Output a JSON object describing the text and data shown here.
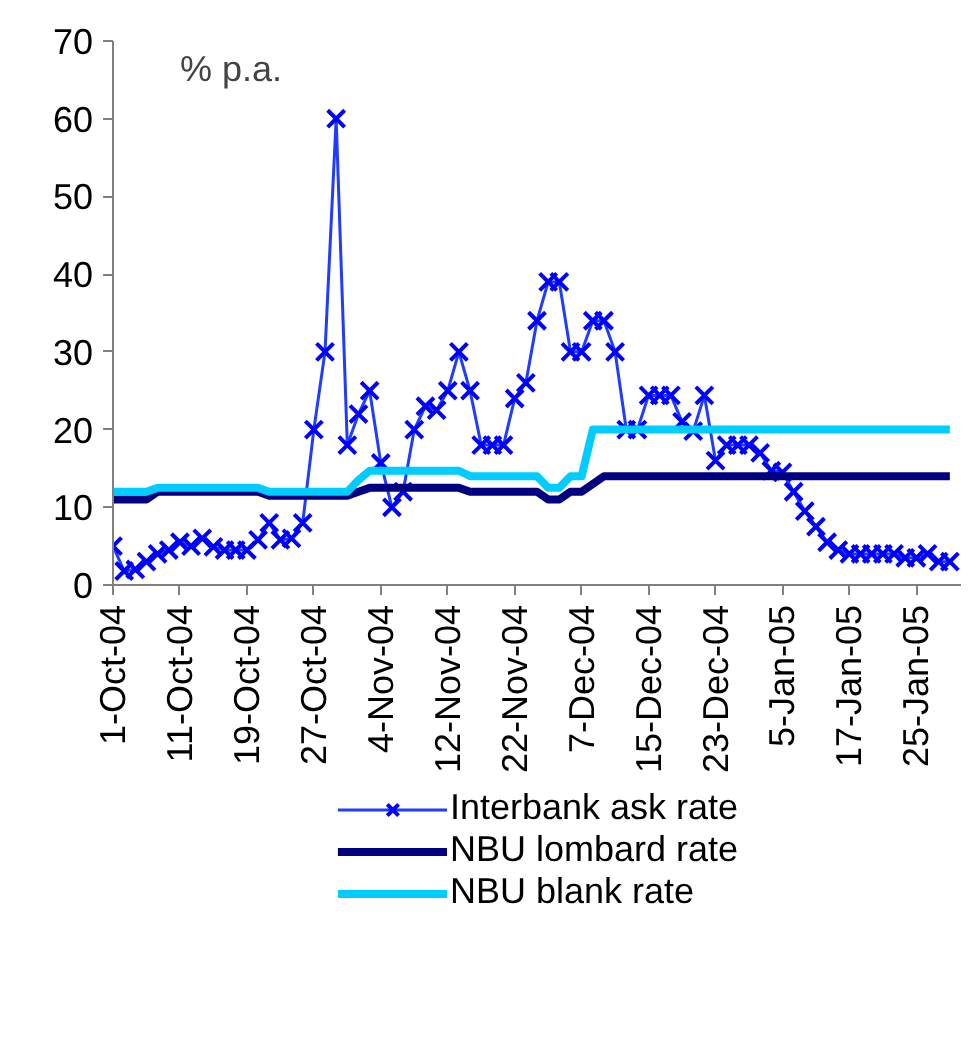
{
  "chart_data": {
    "type": "line",
    "ylabel": "% p.a.",
    "categories": [
      "1-Oct-04",
      null,
      null,
      null,
      null,
      null,
      "11-Oct-04",
      null,
      null,
      null,
      null,
      null,
      "19-Oct-04",
      null,
      null,
      null,
      null,
      null,
      "27-Oct-04",
      null,
      null,
      null,
      null,
      null,
      "4-Nov-04",
      null,
      null,
      null,
      null,
      null,
      "12-Nov-04",
      null,
      null,
      null,
      null,
      null,
      "22-Nov-04",
      null,
      null,
      null,
      null,
      null,
      "7-Dec-04",
      null,
      null,
      null,
      null,
      null,
      "15-Dec-04",
      null,
      null,
      null,
      null,
      null,
      "23-Dec-04",
      null,
      null,
      null,
      null,
      null,
      "5-Jan-05",
      null,
      null,
      null,
      null,
      null,
      "17-Jan-05",
      null,
      null,
      null,
      null,
      null,
      "25-Jan-05",
      null,
      null,
      null
    ],
    "ylim": [
      0,
      70
    ],
    "yticks": [
      0,
      10,
      20,
      30,
      40,
      50,
      60,
      70
    ],
    "grid": false,
    "legend": "bottom",
    "series": [
      {
        "name": "Interbank ask rate",
        "color": "#1f3cff",
        "marker": "cross",
        "values": [
          5,
          1.8,
          2,
          3,
          4,
          4.5,
          5.5,
          5,
          6,
          4.9,
          4.5,
          4.5,
          4.5,
          5.8,
          8,
          5.8,
          6,
          8,
          20,
          30,
          60,
          18,
          22,
          25,
          15.7,
          10,
          12,
          20,
          23,
          22.5,
          25,
          30,
          25,
          18,
          18,
          18,
          24,
          26,
          34,
          39,
          39,
          30,
          30,
          34,
          34,
          30,
          20,
          20,
          24.4,
          24.4,
          24.4,
          21,
          19.8,
          24.4,
          16,
          18,
          18,
          18,
          17,
          14.7,
          14.5,
          12,
          9.5,
          7.5,
          5.5,
          4.5,
          4,
          4,
          4,
          4,
          4,
          3.5,
          3.5,
          4,
          3,
          3
        ]
      },
      {
        "name": "NBU lombard rate",
        "color": "#000080",
        "marker": "none",
        "values": [
          11,
          11,
          11,
          11,
          12,
          12,
          12,
          12,
          12,
          12,
          12,
          12,
          12,
          12,
          11.5,
          11.5,
          11.5,
          11.5,
          11.5,
          11.5,
          11.5,
          11.5,
          12,
          12.5,
          12.5,
          12.5,
          12.5,
          12.5,
          12.5,
          12.5,
          12.5,
          12.5,
          12,
          12,
          12,
          12,
          12,
          12,
          12,
          11,
          11,
          12,
          12,
          13,
          14,
          14,
          14,
          14,
          14,
          14,
          14,
          14,
          14,
          14,
          14,
          14,
          14,
          14,
          14,
          14,
          14,
          14,
          14,
          14,
          14,
          14,
          14,
          14,
          14,
          14,
          14,
          14,
          14,
          14,
          14,
          14
        ]
      },
      {
        "name": "NBU blank rate",
        "color": "#00ccff",
        "marker": "none",
        "values": [
          12,
          12,
          12,
          12,
          12.5,
          12.5,
          12.5,
          12.5,
          12.5,
          12.5,
          12.5,
          12.5,
          12.5,
          12.5,
          12,
          12,
          12,
          12,
          12,
          12,
          12,
          12,
          13.5,
          14.7,
          14.7,
          14.7,
          14.7,
          14.7,
          14.7,
          14.7,
          14.7,
          14.7,
          14,
          14,
          14,
          14,
          14,
          14,
          14,
          12.5,
          12.5,
          14,
          14,
          20,
          20,
          20,
          20,
          20,
          20,
          20,
          20,
          20,
          20,
          20,
          20,
          20,
          20,
          20,
          20,
          20,
          20,
          20,
          20,
          20,
          20,
          20,
          20,
          20,
          20,
          20,
          20,
          20,
          20,
          20,
          20,
          20
        ]
      }
    ]
  }
}
